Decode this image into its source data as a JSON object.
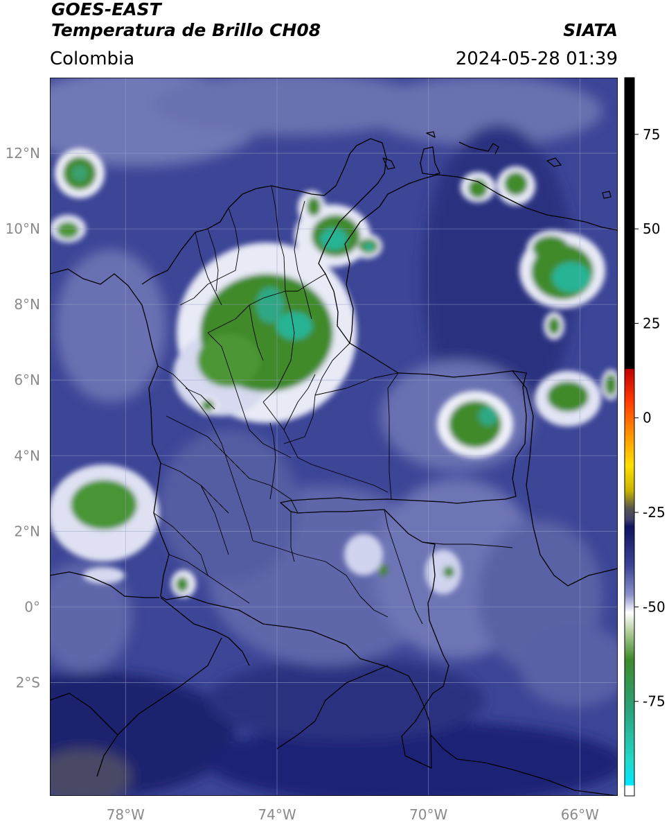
{
  "header": {
    "satellite": "GOES-EAST",
    "product": "Temperatura de Brillo CH08",
    "region": "Colombia",
    "source": "SIATA",
    "datetime": "2024-05-28 01:39"
  },
  "map": {
    "lon_range": [
      -80,
      -65
    ],
    "lat_range": [
      -5,
      14
    ],
    "lon_ticks": [
      {
        "value": -78,
        "label": "78°W"
      },
      {
        "value": -74,
        "label": "74°W"
      },
      {
        "value": -70,
        "label": "70°W"
      },
      {
        "value": -66,
        "label": "66°W"
      }
    ],
    "lat_ticks": [
      {
        "value": 12,
        "label": "12°N"
      },
      {
        "value": 10,
        "label": "10°N"
      },
      {
        "value": 8,
        "label": "8°N"
      },
      {
        "value": 6,
        "label": "6°N"
      },
      {
        "value": 4,
        "label": "4°N"
      },
      {
        "value": 2,
        "label": "2°N"
      },
      {
        "value": 0,
        "label": "0°"
      },
      {
        "value": -2,
        "label": "2°S"
      }
    ],
    "gridlines": true
  },
  "colorbar": {
    "range": [
      -100,
      90
    ],
    "ticks": [
      {
        "value": 75,
        "label": "75"
      },
      {
        "value": 50,
        "label": "50"
      },
      {
        "value": 25,
        "label": "25"
      },
      {
        "value": 0,
        "label": "0"
      },
      {
        "value": -25,
        "label": "-25"
      },
      {
        "value": -50,
        "label": "-50"
      },
      {
        "value": -75,
        "label": "-75"
      }
    ]
  },
  "colors": {
    "background_blue": "#3c4596",
    "deep_blue": "#1a1f6e",
    "light_blue": "#7f86c0",
    "cloud_white": "#e8eaf6",
    "cloud_green": "#3f8a2c",
    "cloud_teal": "#28b494",
    "border": "#000000"
  },
  "chart_data": {
    "type": "heatmap",
    "title": "Temperatura de Brillo CH08",
    "xlabel": "",
    "ylabel": "",
    "xlim": [
      -80,
      -65
    ],
    "ylim": [
      -5,
      14
    ],
    "cold_cloud_features": [
      {
        "lon": -74.0,
        "lat": 7.4,
        "level": "green-teal"
      },
      {
        "lon": -72.6,
        "lat": 9.9,
        "level": "teal"
      },
      {
        "lon": -68.4,
        "lat": 4.9,
        "level": "green"
      },
      {
        "lon": -66.0,
        "lat": 8.7,
        "level": "teal"
      },
      {
        "lon": -66.6,
        "lat": 9.5,
        "level": "green"
      },
      {
        "lon": -78.6,
        "lat": 2.6,
        "level": "green"
      },
      {
        "lon": -78.9,
        "lat": 11.6,
        "level": "green"
      },
      {
        "lon": -66.4,
        "lat": 5.9,
        "level": "green"
      },
      {
        "lon": -67.6,
        "lat": 11.1,
        "level": "green"
      }
    ]
  }
}
